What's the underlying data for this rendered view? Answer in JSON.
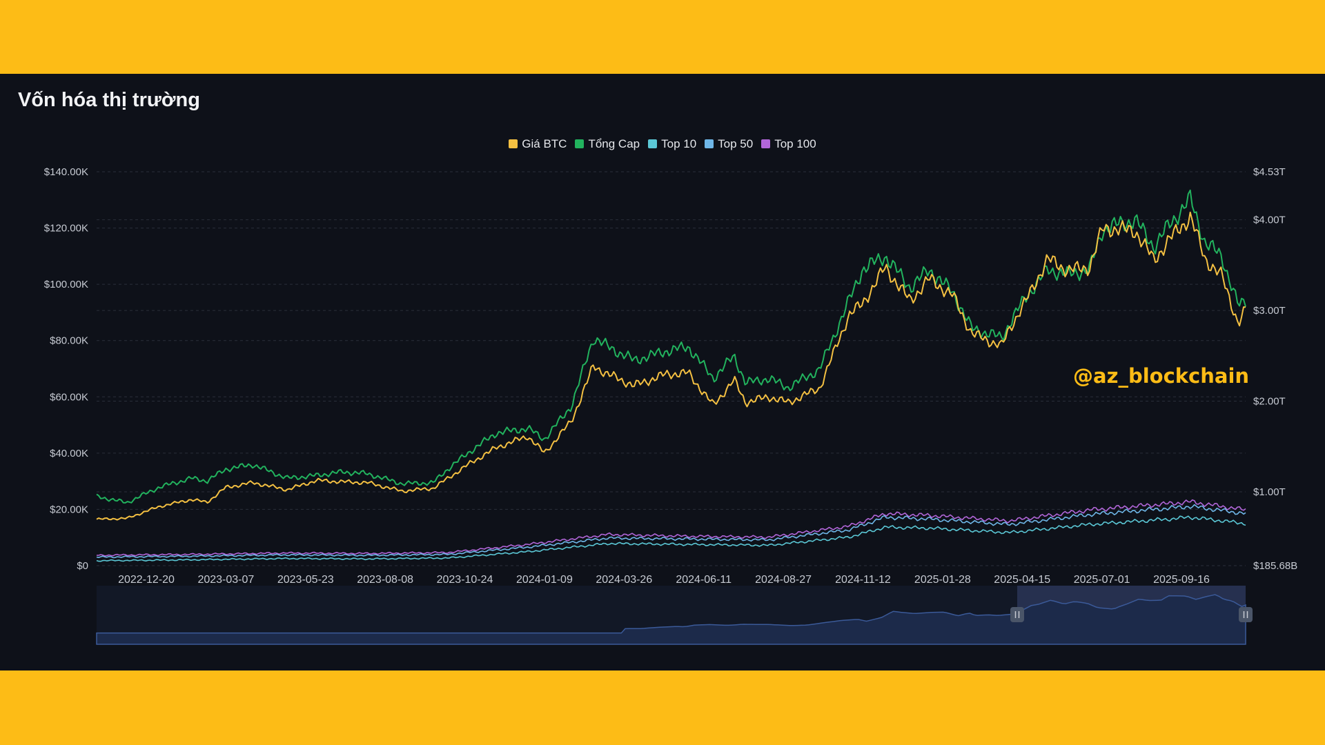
{
  "header": {
    "title": "Vốn hóa thị trường"
  },
  "watermark": "@az_blockchain",
  "colors": {
    "background": "#FDBC16",
    "panel": "#0E1119",
    "grid": "#2A2F3A"
  },
  "chart_data": {
    "type": "line",
    "title": "Vốn hóa thị trường",
    "legend_position": "top-center",
    "grid": true,
    "x_ticks": [
      "2022-12-20",
      "2023-03-07",
      "2023-05-23",
      "2023-08-08",
      "2023-10-24",
      "2024-01-09",
      "2024-03-26",
      "2024-06-11",
      "2024-08-27",
      "2024-11-12",
      "2025-01-28",
      "2025-04-15",
      "2025-07-01",
      "2025-09-16"
    ],
    "y_left": {
      "ticks": [
        "$0",
        "$20.00K",
        "$40.00K",
        "$60.00K",
        "$80.00K",
        "$100.00K",
        "$120.00K",
        "$140.00K"
      ],
      "range": [
        0,
        140000
      ]
    },
    "y_right": {
      "ticks": [
        "$185.68B",
        "$1.00T",
        "$2.00T",
        "$3.00T",
        "$4.00T",
        "$4.53T"
      ],
      "range": [
        185.68,
        4530
      ]
    },
    "series": [
      {
        "name": "Giá BTC",
        "color": "#F4C042",
        "axis": "left",
        "x": [
          "2022-11-21",
          "2022-12-20",
          "2023-01-20",
          "2023-02-20",
          "2023-03-07",
          "2023-03-25",
          "2023-04-20",
          "2023-05-23",
          "2023-06-20",
          "2023-07-15",
          "2023-08-08",
          "2023-09-10",
          "2023-10-10",
          "2023-10-24",
          "2023-11-15",
          "2023-12-10",
          "2024-01-09",
          "2024-01-25",
          "2024-02-20",
          "2024-03-12",
          "2024-03-26",
          "2024-04-20",
          "2024-05-20",
          "2024-06-11",
          "2024-07-05",
          "2024-07-25",
          "2024-08-05",
          "2024-08-27",
          "2024-09-15",
          "2024-10-15",
          "2024-11-12",
          "2024-11-25",
          "2024-12-17",
          "2025-01-10",
          "2025-01-28",
          "2025-02-20",
          "2025-03-10",
          "2025-04-08",
          "2025-04-15",
          "2025-05-01",
          "2025-05-22",
          "2025-06-10",
          "2025-07-01",
          "2025-07-14",
          "2025-08-14",
          "2025-09-01",
          "2025-09-16",
          "2025-10-06",
          "2025-10-20",
          "2025-11-05",
          "2025-11-21",
          "2025-11-28"
        ],
        "values": [
          16500,
          16800,
          21000,
          23500,
          22500,
          27800,
          29500,
          27000,
          30300,
          29800,
          29500,
          26500,
          27500,
          31000,
          36500,
          42000,
          46000,
          40000,
          51500,
          71000,
          68000,
          64000,
          68000,
          68500,
          57000,
          66000,
          58000,
          60000,
          58000,
          63000,
          89000,
          93000,
          106000,
          94000,
          102000,
          96000,
          82500,
          78000,
          84000,
          94000,
          109000,
          105000,
          106000,
          120000,
          119000,
          108500,
          116000,
          124000,
          109000,
          103000,
          86000,
          91000
        ]
      },
      {
        "name": "Tổng Cap",
        "color": "#22B35E",
        "axis": "right",
        "x": [
          "2022-11-21",
          "2022-12-20",
          "2023-01-20",
          "2023-02-20",
          "2023-03-07",
          "2023-03-25",
          "2023-04-20",
          "2023-05-23",
          "2023-06-20",
          "2023-07-15",
          "2023-08-08",
          "2023-09-10",
          "2023-10-10",
          "2023-10-24",
          "2023-11-15",
          "2023-12-10",
          "2024-01-09",
          "2024-01-25",
          "2024-02-20",
          "2024-03-12",
          "2024-03-26",
          "2024-04-20",
          "2024-05-20",
          "2024-06-11",
          "2024-07-05",
          "2024-07-25",
          "2024-08-05",
          "2024-08-27",
          "2024-09-15",
          "2024-10-15",
          "2024-11-12",
          "2024-11-25",
          "2024-12-17",
          "2025-01-10",
          "2025-01-28",
          "2025-02-20",
          "2025-03-10",
          "2025-04-08",
          "2025-04-15",
          "2025-05-01",
          "2025-05-22",
          "2025-06-10",
          "2025-07-01",
          "2025-07-14",
          "2025-08-14",
          "2025-09-01",
          "2025-09-16",
          "2025-10-06",
          "2025-10-20",
          "2025-11-05",
          "2025-11-21",
          "2025-11-28"
        ],
        "values": [
          950,
          880,
          1050,
          1150,
          1120,
          1250,
          1300,
          1150,
          1180,
          1220,
          1200,
          1090,
          1100,
          1250,
          1450,
          1650,
          1700,
          1580,
          1950,
          2700,
          2600,
          2450,
          2550,
          2600,
          2250,
          2500,
          2200,
          2250,
          2150,
          2350,
          3100,
          3450,
          3600,
          3250,
          3450,
          3200,
          2800,
          2700,
          2850,
          3150,
          3450,
          3400,
          3450,
          3900,
          4000,
          3700,
          3950,
          4230,
          3750,
          3600,
          3050,
          3100
        ]
      },
      {
        "name": "Top 10",
        "color": "#5BC8D6",
        "axis": "right",
        "x": [
          "2022-11-21",
          "2023-02-20",
          "2023-05-23",
          "2023-08-08",
          "2023-10-24",
          "2024-01-09",
          "2024-03-26",
          "2024-06-11",
          "2024-08-27",
          "2024-11-12",
          "2024-12-17",
          "2025-01-28",
          "2025-04-15",
          "2025-07-01",
          "2025-09-16",
          "2025-10-06",
          "2025-11-28"
        ],
        "values": [
          240,
          250,
          265,
          260,
          270,
          340,
          430,
          420,
          410,
          500,
          610,
          600,
          550,
          640,
          700,
          720,
          650
        ]
      },
      {
        "name": "Top 50",
        "color": "#6FB7E8",
        "axis": "right",
        "x": [
          "2022-11-21",
          "2023-02-20",
          "2023-05-23",
          "2023-08-08",
          "2023-10-24",
          "2024-01-09",
          "2024-03-26",
          "2024-06-11",
          "2024-08-27",
          "2024-11-12",
          "2024-12-17",
          "2025-01-28",
          "2025-04-15",
          "2025-07-01",
          "2025-09-16",
          "2025-10-06",
          "2025-11-28"
        ],
        "values": [
          280,
          290,
          305,
          300,
          310,
          390,
          490,
          480,
          470,
          580,
          720,
          700,
          640,
          750,
          820,
          840,
          760
        ]
      },
      {
        "name": "Top 100",
        "color": "#B266D9",
        "axis": "right",
        "x": [
          "2022-11-21",
          "2023-02-20",
          "2023-05-23",
          "2023-08-08",
          "2023-10-24",
          "2024-01-09",
          "2024-03-26",
          "2024-06-11",
          "2024-08-27",
          "2024-11-12",
          "2024-12-17",
          "2025-01-28",
          "2025-04-15",
          "2025-07-01",
          "2025-09-16",
          "2025-10-06",
          "2025-11-28"
        ],
        "values": [
          300,
          310,
          325,
          320,
          330,
          420,
          530,
          510,
          500,
          620,
          760,
          740,
          680,
          800,
          870,
          890,
          800
        ]
      }
    ]
  }
}
